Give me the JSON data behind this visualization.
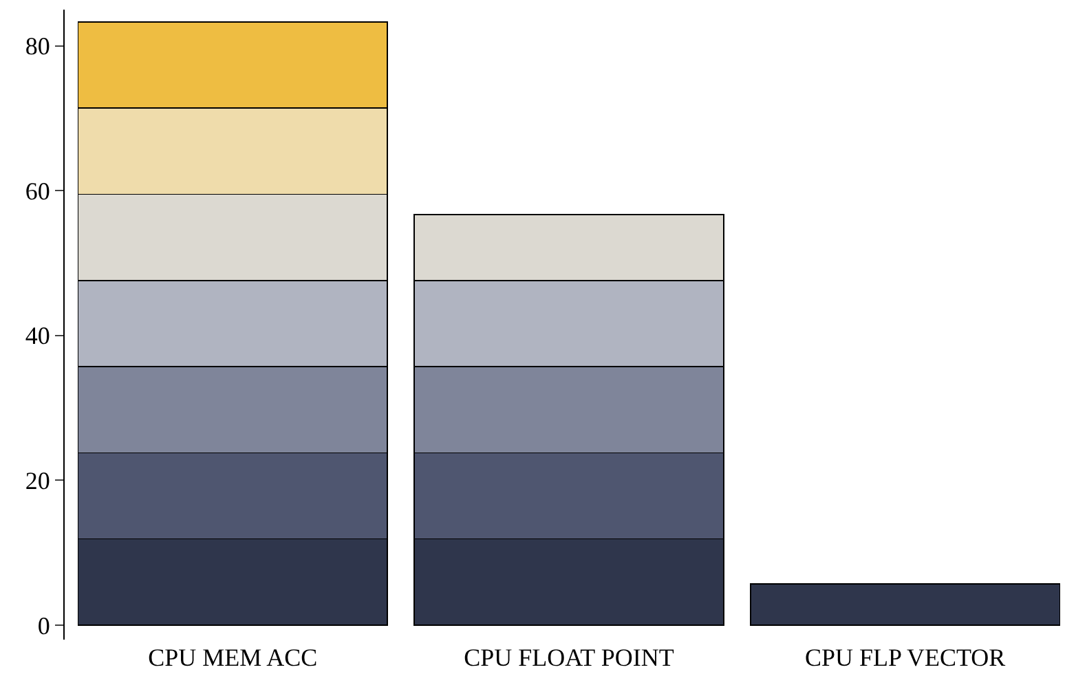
{
  "chart_data": {
    "type": "bar",
    "stacked": true,
    "categories": [
      "CPU MEM ACC",
      "CPU FLOAT POINT",
      "CPU FLP VECTOR"
    ],
    "series": [
      {
        "color": "#2f364c",
        "values": [
          11.9,
          11.9,
          5.7
        ]
      },
      {
        "color": "#4f5670",
        "values": [
          11.9,
          11.9,
          null
        ]
      },
      {
        "color": "#7f859a",
        "values": [
          11.9,
          11.9,
          null
        ]
      },
      {
        "color": "#b0b4c1",
        "values": [
          11.9,
          11.9,
          null
        ]
      },
      {
        "color": "#dcd9d1",
        "values": [
          11.9,
          9.1,
          null
        ]
      },
      {
        "color": "#efdcab",
        "values": [
          11.9,
          null,
          null
        ]
      },
      {
        "color": "#eebd42",
        "values": [
          11.9,
          null,
          null
        ]
      }
    ],
    "ylim": [
      -2,
      85
    ],
    "yticks": [
      0,
      20,
      40,
      60,
      80
    ]
  }
}
